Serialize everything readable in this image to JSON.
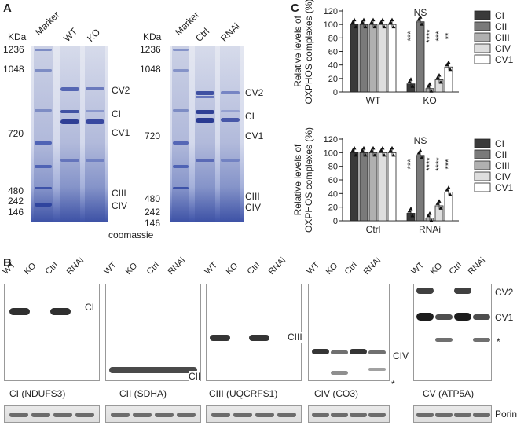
{
  "panel_labels": {
    "a": "A",
    "b": "B",
    "c": "C"
  },
  "gel_left": {
    "unit": "KDa",
    "lanes": [
      "Marker",
      "WT",
      "KO"
    ],
    "markers": [
      "1236",
      "1048",
      "720",
      "480",
      "242",
      "146"
    ],
    "complexes": [
      "CV2",
      "CI",
      "CV1",
      "CIII",
      "CIV"
    ]
  },
  "gel_right": {
    "unit": "KDa",
    "lanes": [
      "Marker",
      "Ctrl",
      "RNAi"
    ],
    "markers": [
      "1236",
      "1048",
      "720",
      "480",
      "242",
      "146"
    ],
    "complexes": [
      "CV2",
      "CI",
      "CV1",
      "CIII",
      "CIV"
    ]
  },
  "stain_label": "coomassie",
  "blots": {
    "lanes": [
      "WT",
      "KO",
      "Ctrl",
      "RNAi"
    ],
    "panels": [
      {
        "band": "CI",
        "caption": "CI (NDUFS3)"
      },
      {
        "band": "CII",
        "caption": "CII (SDHA)"
      },
      {
        "band": "CIII",
        "caption": "CIII (UQCRFS1)"
      },
      {
        "band": "CIV",
        "caption": "CIV (CO3)",
        "star": "*"
      },
      {
        "bands": [
          "CV2",
          "CV1"
        ],
        "caption": "CV (ATP5A)",
        "star": "*"
      }
    ],
    "loading_control": "Porin"
  },
  "chart_data": [
    {
      "type": "bar",
      "title": "",
      "xlabel": "",
      "ylabel": "Relative levels of OXPHOS complexes (%)",
      "ylim": [
        0,
        120
      ],
      "yticks": [
        "0",
        "20",
        "40",
        "60",
        "80",
        "100",
        "120"
      ],
      "categories": [
        "WT",
        "KO"
      ],
      "series": [
        {
          "name": "CI",
          "values": [
            100,
            12
          ],
          "color": "#3a3a3a"
        },
        {
          "name": "CII",
          "values": [
            100,
            104
          ],
          "color": "#7a7a7a"
        },
        {
          "name": "CIII",
          "values": [
            100,
            5
          ],
          "color": "#b0b0b0"
        },
        {
          "name": "CIV",
          "values": [
            100,
            18
          ],
          "color": "#dedede"
        },
        {
          "name": "CV1",
          "values": [
            100,
            37
          ],
          "color": "#ffffff"
        }
      ],
      "significance": [
        "***",
        "NS",
        "****",
        "***",
        "**"
      ],
      "legend": "top-right"
    },
    {
      "type": "bar",
      "title": "",
      "xlabel": "",
      "ylabel": "Relative levels of OXPHOS complexes (%)",
      "ylim": [
        0,
        120
      ],
      "yticks": [
        "0",
        "20",
        "40",
        "60",
        "80",
        "100",
        "120"
      ],
      "categories": [
        "Ctrl",
        "RNAi"
      ],
      "series": [
        {
          "name": "CI",
          "values": [
            100,
            11
          ],
          "color": "#3a3a3a"
        },
        {
          "name": "CII",
          "values": [
            100,
            96
          ],
          "color": "#7a7a7a"
        },
        {
          "name": "CIII",
          "values": [
            100,
            4
          ],
          "color": "#b0b0b0"
        },
        {
          "name": "CIV",
          "values": [
            100,
            22
          ],
          "color": "#dedede"
        },
        {
          "name": "CV1",
          "values": [
            100,
            42
          ],
          "color": "#ffffff"
        }
      ],
      "significance": [
        "***",
        "NS",
        "****",
        "****",
        "***"
      ],
      "legend": "top-right"
    }
  ]
}
